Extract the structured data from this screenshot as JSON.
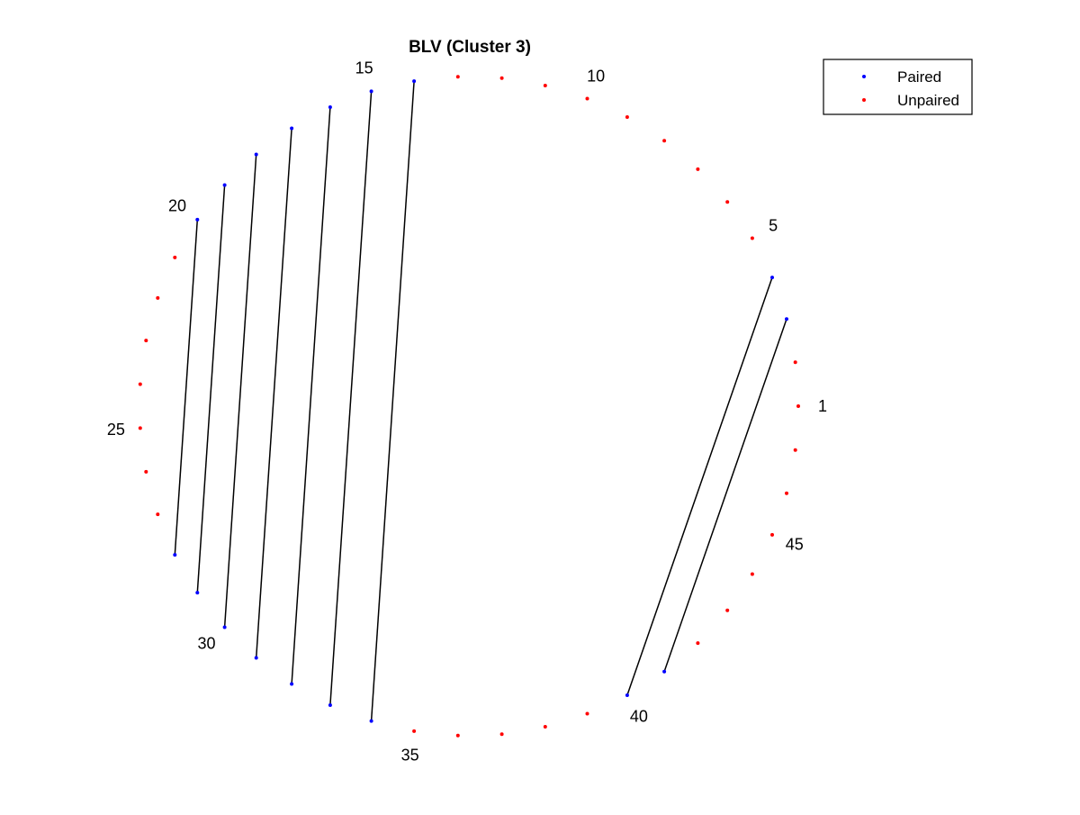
{
  "chart_data": {
    "type": "scatter",
    "title": "BLV (Cluster 3)",
    "n_positions": 47,
    "position_labels": [
      1,
      5,
      10,
      15,
      20,
      25,
      30,
      35,
      40,
      45
    ],
    "pairs": [
      [
        4,
        40
      ],
      [
        3,
        41
      ],
      [
        14,
        34
      ],
      [
        15,
        33
      ],
      [
        16,
        32
      ],
      [
        17,
        31
      ],
      [
        18,
        30
      ],
      [
        19,
        29
      ],
      [
        20,
        28
      ]
    ],
    "paired_positions": [
      3,
      4,
      14,
      15,
      16,
      17,
      18,
      19,
      20,
      28,
      29,
      30,
      31,
      32,
      33,
      34,
      40,
      41
    ],
    "series": [
      {
        "name": "Paired",
        "color": "#0000ff"
      },
      {
        "name": "Unpaired",
        "color": "#ff0000"
      }
    ],
    "line_color": "#000000",
    "legend_position": "top-right",
    "grid": false
  }
}
